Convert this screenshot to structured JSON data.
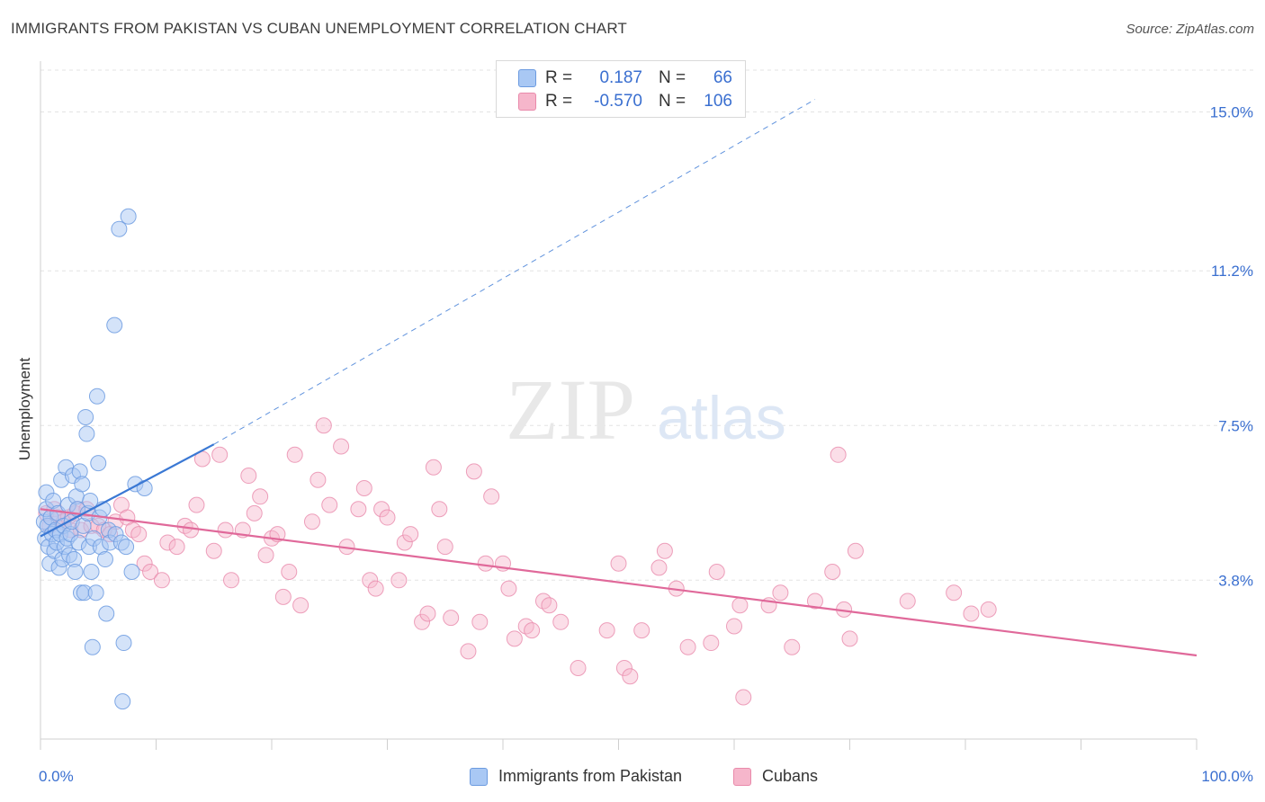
{
  "header": {
    "title": "IMMIGRANTS FROM PAKISTAN VS CUBAN UNEMPLOYMENT CORRELATION CHART",
    "source": "Source: ZipAtlas.com"
  },
  "watermark": {
    "zip": "ZIP",
    "atlas": "atlas"
  },
  "legend_stats": [
    {
      "r_label": "R =",
      "r_value": "0.187",
      "n_label": "N =",
      "n_value": "66"
    },
    {
      "r_label": "R =",
      "r_value": "-0.570",
      "n_label": "N =",
      "n_value": "106"
    }
  ],
  "colors": {
    "blue_fill": "#a9c8f4",
    "blue_stroke": "#6c9be0",
    "blue_line": "#3a78d4",
    "pink_fill": "#f6b6cb",
    "pink_stroke": "#e98aab",
    "pink_line": "#e0699a",
    "value_text": "#3a6fd0",
    "grid": "#e3e3e3"
  },
  "chart_data": {
    "type": "scatter",
    "title": "IMMIGRANTS FROM PAKISTAN VS CUBAN UNEMPLOYMENT CORRELATION CHART",
    "xlabel": "",
    "ylabel": "Unemployment",
    "xlim": [
      0,
      100
    ],
    "ylim": [
      0,
      16.0
    ],
    "x_tick_labels": [
      "0.0%",
      "100.0%"
    ],
    "y_ticks": [
      3.8,
      7.5,
      11.2,
      15.0
    ],
    "y_tick_labels": [
      "3.8%",
      "7.5%",
      "11.2%",
      "15.0%"
    ],
    "grid": true,
    "legend_position": "bottom",
    "series": [
      {
        "name": "Immigrants from Pakistan",
        "r": 0.187,
        "n": 66,
        "trend": {
          "solid": [
            [
              0,
              4.85
            ],
            [
              15,
              7.05
            ]
          ],
          "dashed": [
            [
              15,
              7.05
            ],
            [
              67,
              15.3
            ]
          ]
        },
        "points": [
          [
            0.3,
            5.2
          ],
          [
            0.4,
            4.8
          ],
          [
            0.5,
            5.5
          ],
          [
            0.5,
            5.9
          ],
          [
            0.6,
            5.1
          ],
          [
            0.7,
            4.6
          ],
          [
            0.8,
            4.2
          ],
          [
            0.9,
            5.3
          ],
          [
            1.0,
            4.9
          ],
          [
            1.1,
            5.7
          ],
          [
            1.2,
            4.5
          ],
          [
            1.3,
            5.0
          ],
          [
            1.4,
            4.7
          ],
          [
            1.5,
            5.4
          ],
          [
            1.6,
            4.1
          ],
          [
            1.7,
            4.9
          ],
          [
            1.8,
            6.2
          ],
          [
            1.9,
            4.3
          ],
          [
            2.0,
            5.1
          ],
          [
            2.1,
            4.6
          ],
          [
            2.2,
            6.5
          ],
          [
            2.3,
            4.8
          ],
          [
            2.4,
            5.6
          ],
          [
            2.5,
            4.4
          ],
          [
            2.6,
            4.9
          ],
          [
            2.7,
            5.2
          ],
          [
            2.8,
            6.3
          ],
          [
            2.9,
            4.3
          ],
          [
            3.0,
            4.0
          ],
          [
            3.1,
            5.8
          ],
          [
            3.2,
            5.5
          ],
          [
            3.3,
            4.7
          ],
          [
            3.4,
            6.4
          ],
          [
            3.5,
            3.5
          ],
          [
            3.6,
            6.1
          ],
          [
            3.7,
            5.1
          ],
          [
            3.8,
            3.5
          ],
          [
            3.9,
            7.7
          ],
          [
            4.0,
            7.3
          ],
          [
            4.1,
            5.4
          ],
          [
            4.2,
            4.6
          ],
          [
            4.3,
            5.7
          ],
          [
            4.4,
            4.0
          ],
          [
            4.5,
            2.2
          ],
          [
            4.6,
            4.8
          ],
          [
            4.8,
            3.5
          ],
          [
            4.9,
            8.2
          ],
          [
            5.0,
            6.6
          ],
          [
            5.1,
            5.3
          ],
          [
            5.2,
            4.6
          ],
          [
            5.4,
            5.5
          ],
          [
            5.6,
            4.3
          ],
          [
            5.7,
            3.0
          ],
          [
            5.9,
            5.0
          ],
          [
            6.0,
            4.7
          ],
          [
            6.4,
            9.9
          ],
          [
            6.5,
            4.9
          ],
          [
            6.8,
            12.2
          ],
          [
            7.0,
            4.7
          ],
          [
            7.1,
            0.9
          ],
          [
            7.2,
            2.3
          ],
          [
            7.4,
            4.6
          ],
          [
            7.6,
            12.5
          ],
          [
            7.9,
            4.0
          ],
          [
            8.2,
            6.1
          ],
          [
            9.0,
            6.0
          ]
        ]
      },
      {
        "name": "Cubans",
        "r": -0.57,
        "n": 106,
        "trend": {
          "solid": [
            [
              0,
              5.5
            ],
            [
              100,
              2.0
            ]
          ]
        },
        "points": [
          [
            0.5,
            5.4
          ],
          [
            0.8,
            5.1
          ],
          [
            1.2,
            5.5
          ],
          [
            1.5,
            5.3
          ],
          [
            2.0,
            5.2
          ],
          [
            2.4,
            5.3
          ],
          [
            2.6,
            5.0
          ],
          [
            3.0,
            5.4
          ],
          [
            3.2,
            5.5
          ],
          [
            3.5,
            5.0
          ],
          [
            4.0,
            5.5
          ],
          [
            4.4,
            5.1
          ],
          [
            5.0,
            5.1
          ],
          [
            5.5,
            5.0
          ],
          [
            6.0,
            4.9
          ],
          [
            6.5,
            5.2
          ],
          [
            7.0,
            5.6
          ],
          [
            7.5,
            5.3
          ],
          [
            8.0,
            5.0
          ],
          [
            8.5,
            4.9
          ],
          [
            9.0,
            4.2
          ],
          [
            9.5,
            4.0
          ],
          [
            10.5,
            3.8
          ],
          [
            11.0,
            4.7
          ],
          [
            11.8,
            4.6
          ],
          [
            12.5,
            5.1
          ],
          [
            13.0,
            5.0
          ],
          [
            13.5,
            5.6
          ],
          [
            14.0,
            6.7
          ],
          [
            15.0,
            4.5
          ],
          [
            15.5,
            6.8
          ],
          [
            16.0,
            5.0
          ],
          [
            16.5,
            3.8
          ],
          [
            17.5,
            5.0
          ],
          [
            18.0,
            6.3
          ],
          [
            18.5,
            5.4
          ],
          [
            19.0,
            5.8
          ],
          [
            19.5,
            4.4
          ],
          [
            20.0,
            4.8
          ],
          [
            20.5,
            4.9
          ],
          [
            21.0,
            3.4
          ],
          [
            21.5,
            4.0
          ],
          [
            22.0,
            6.8
          ],
          [
            22.5,
            3.2
          ],
          [
            23.5,
            5.2
          ],
          [
            24.0,
            6.2
          ],
          [
            24.5,
            7.5
          ],
          [
            25.0,
            5.6
          ],
          [
            26.0,
            7.0
          ],
          [
            26.5,
            4.6
          ],
          [
            27.5,
            5.5
          ],
          [
            28.0,
            6.0
          ],
          [
            28.5,
            3.8
          ],
          [
            29.0,
            3.6
          ],
          [
            29.5,
            5.5
          ],
          [
            30.0,
            5.3
          ],
          [
            31.0,
            3.8
          ],
          [
            31.5,
            4.7
          ],
          [
            32.0,
            4.9
          ],
          [
            33.0,
            2.8
          ],
          [
            33.5,
            3.0
          ],
          [
            34.0,
            6.5
          ],
          [
            34.5,
            5.5
          ],
          [
            35.0,
            4.6
          ],
          [
            35.5,
            2.9
          ],
          [
            37.0,
            2.1
          ],
          [
            37.5,
            6.4
          ],
          [
            38.0,
            2.8
          ],
          [
            38.5,
            4.2
          ],
          [
            39.0,
            5.8
          ],
          [
            40.0,
            4.2
          ],
          [
            40.5,
            3.6
          ],
          [
            41.0,
            2.4
          ],
          [
            42.0,
            2.7
          ],
          [
            42.5,
            2.6
          ],
          [
            43.5,
            3.3
          ],
          [
            44.0,
            3.2
          ],
          [
            45.0,
            2.8
          ],
          [
            46.5,
            1.7
          ],
          [
            49.0,
            2.6
          ],
          [
            50.0,
            4.2
          ],
          [
            50.5,
            1.7
          ],
          [
            51.0,
            1.5
          ],
          [
            52.0,
            2.6
          ],
          [
            53.5,
            4.1
          ],
          [
            54.0,
            4.5
          ],
          [
            55.0,
            3.6
          ],
          [
            56.0,
            2.2
          ],
          [
            58.0,
            2.3
          ],
          [
            58.5,
            4.0
          ],
          [
            60.0,
            2.7
          ],
          [
            60.5,
            3.2
          ],
          [
            60.8,
            1.0
          ],
          [
            63.0,
            3.2
          ],
          [
            64.0,
            3.5
          ],
          [
            65.0,
            2.2
          ],
          [
            67.0,
            3.3
          ],
          [
            68.5,
            4.0
          ],
          [
            69.0,
            6.8
          ],
          [
            69.5,
            3.1
          ],
          [
            70.0,
            2.4
          ],
          [
            70.5,
            4.5
          ],
          [
            75.0,
            3.3
          ],
          [
            79.0,
            3.5
          ],
          [
            80.5,
            3.0
          ],
          [
            82.0,
            3.1
          ]
        ]
      }
    ]
  }
}
